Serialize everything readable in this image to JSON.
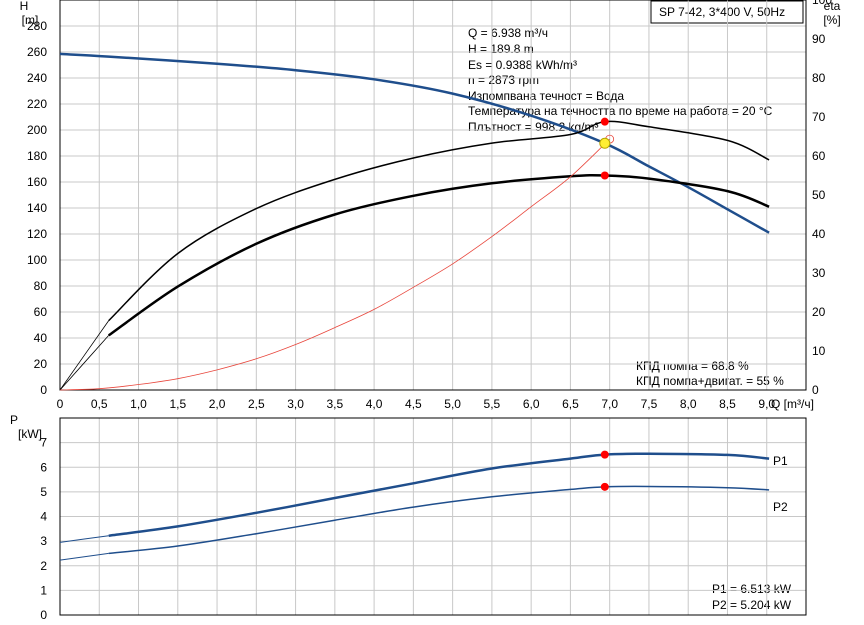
{
  "title_box": "SP 7-42, 3*400 V, 50Hz",
  "info_lines": [
    "Q = 6.938 m³/ч",
    "H = 189.8 m",
    "Es = 0.9388 kWh/m³",
    "n = 2873 rpm",
    "Изпомпвана течност = Вода",
    "Температура на течността по време на работа = 20 °C",
    "Плътност = 998.2 kg/m³"
  ],
  "efficiency_lines": [
    "КПД помпа = 68.8 %",
    "КПД помпа+двигат. = 55 %"
  ],
  "power_lines": [
    "P1 = 6.513 kW",
    "P2 = 5.204 kW"
  ],
  "colors": {
    "head": "#1f4e8c",
    "eff": "#000000",
    "system": "#e8463c",
    "power": "#1f4e8c",
    "marker": "#ff0000",
    "duty": "#ffee33"
  },
  "chart_data": [
    {
      "type": "line",
      "x_unit": "Q [m³/ч]",
      "xlim": [
        0,
        9.5
      ],
      "x_ticks": [
        "0",
        "0,5",
        "1,0",
        "1,5",
        "2,0",
        "2,5",
        "3,0",
        "3,5",
        "4,0",
        "4,5",
        "5,0",
        "5,5",
        "6,0",
        "6,5",
        "7,0",
        "7,5",
        "8,0",
        "8,5",
        "9,0"
      ],
      "y_left_label": [
        "H",
        "[m]"
      ],
      "y_left_ticks": [
        "0",
        "20",
        "40",
        "60",
        "80",
        "100",
        "120",
        "140",
        "160",
        "180",
        "200",
        "220",
        "240",
        "260",
        "280"
      ],
      "ylim_left": [
        0,
        300
      ],
      "y_right_label": [
        "eta",
        "[%]"
      ],
      "y_right_ticks": [
        "0",
        "10",
        "20",
        "30",
        "40",
        "50",
        "60",
        "70",
        "80",
        "90",
        "100"
      ],
      "ylim_right": [
        0,
        100
      ],
      "grid": true,
      "series": [
        {
          "key": "head",
          "axis": "left",
          "x": [
            0,
            0.62,
            2,
            3,
            4,
            5,
            6,
            6.938,
            7.5,
            8,
            8.5,
            9.03
          ],
          "y": [
            258.5,
            256.5,
            251,
            246,
            239,
            228,
            211,
            189.8,
            172,
            156,
            139,
            121
          ]
        },
        {
          "key": "head_ext",
          "axis": "left",
          "x": [
            0,
            0.62
          ],
          "y": [
            258.5,
            256.5
          ]
        },
        {
          "key": "eta_pump",
          "axis": "right",
          "x": [
            0.62,
            1.5,
            2.5,
            3.5,
            4.5,
            5.5,
            6.5,
            6.938,
            7.5,
            8.5,
            9.03
          ],
          "y": [
            17.8,
            35,
            46.5,
            54,
            59.5,
            63.3,
            65.5,
            68.8,
            67.5,
            64,
            59
          ]
        },
        {
          "key": "eta_pump_ext",
          "axis": "right",
          "x": [
            0,
            0.62
          ],
          "y": [
            0,
            17.8
          ]
        },
        {
          "key": "eta_total",
          "axis": "right",
          "x": [
            0.62,
            1.5,
            2.5,
            3.5,
            4.5,
            5.5,
            6.5,
            6.938,
            7.5,
            8.5,
            9.03
          ],
          "y": [
            14,
            26.5,
            37.5,
            45,
            49.8,
            53,
            54.8,
            55,
            54.2,
            51,
            47
          ]
        },
        {
          "key": "eta_total_ext",
          "axis": "right",
          "x": [
            0,
            0.62
          ],
          "y": [
            0,
            14
          ]
        },
        {
          "key": "system",
          "axis": "left",
          "x": [
            0,
            0.5,
            1,
            1.5,
            2,
            2.5,
            3,
            3.5,
            4,
            4.5,
            5,
            5.5,
            6,
            6.5,
            7.0
          ],
          "y": [
            0,
            1,
            4.2,
            8.7,
            15.5,
            24,
            35,
            48,
            62,
            79,
            97,
            118,
            141,
            164,
            193
          ]
        }
      ],
      "points": [
        {
          "key": "duty",
          "x": 6.938,
          "y": 189.8,
          "axis": "left"
        },
        {
          "key": "eta_pump_pt",
          "x": 6.938,
          "y": 68.8,
          "axis": "right"
        },
        {
          "key": "eta_total_pt",
          "x": 6.938,
          "y": 55,
          "axis": "right"
        }
      ]
    },
    {
      "type": "line",
      "xlim": [
        0,
        9.5
      ],
      "y_label": [
        "P",
        "[kW]"
      ],
      "y_ticks": [
        "0",
        "1",
        "2",
        "3",
        "4",
        "5",
        "6",
        "7"
      ],
      "ylim": [
        0,
        8
      ],
      "grid": true,
      "series": [
        {
          "name": "P1",
          "key": "p1",
          "x": [
            0.62,
            1.5,
            2.5,
            3.5,
            4.5,
            5.5,
            6.5,
            6.938,
            7.5,
            8.5,
            9.03
          ],
          "y": [
            3.22,
            3.6,
            4.15,
            4.75,
            5.35,
            5.95,
            6.35,
            6.513,
            6.55,
            6.5,
            6.35
          ]
        },
        {
          "key": "p1_ext",
          "x": [
            0,
            0.62
          ],
          "y": [
            2.95,
            3.22
          ]
        },
        {
          "name": "P2",
          "key": "p2",
          "x": [
            0.62,
            1.5,
            2.5,
            3.5,
            4.5,
            5.5,
            6.5,
            6.938,
            7.5,
            8.5,
            9.03
          ],
          "y": [
            2.5,
            2.8,
            3.3,
            3.85,
            4.38,
            4.8,
            5.1,
            5.204,
            5.22,
            5.17,
            5.08
          ]
        },
        {
          "key": "p2_ext",
          "x": [
            0,
            0.62
          ],
          "y": [
            2.23,
            2.5
          ]
        }
      ],
      "points": [
        {
          "key": "p1_pt",
          "x": 6.938,
          "y": 6.513
        },
        {
          "key": "p2_pt",
          "x": 6.938,
          "y": 5.204
        }
      ]
    }
  ]
}
